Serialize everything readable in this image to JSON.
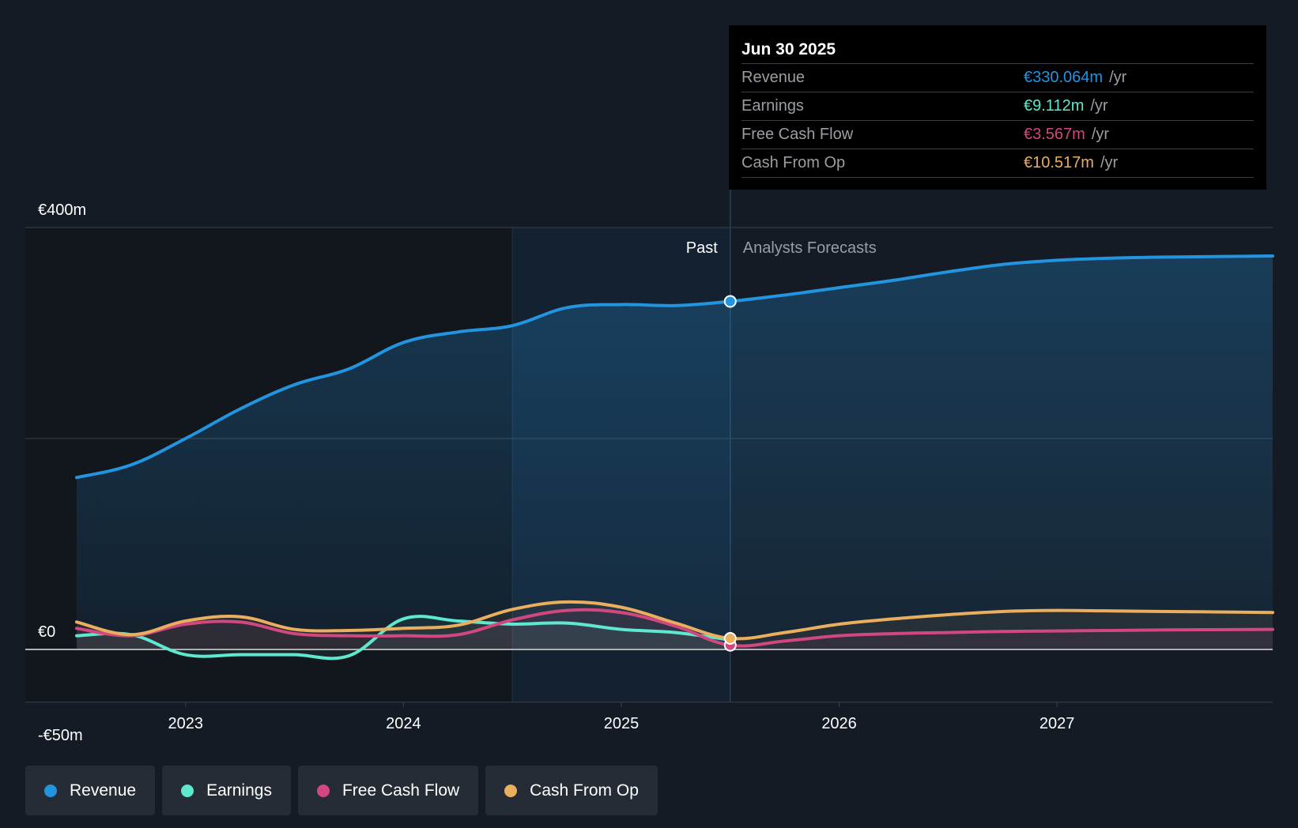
{
  "colors": {
    "revenue": "#2394df",
    "earnings": "#5fe8d0",
    "fcf": "#d0487f",
    "cfo": "#eaae5f",
    "background": "#151b24"
  },
  "tooltip": {
    "date": "Jun 30 2025",
    "rows": [
      {
        "label": "Revenue",
        "value": "€330.064m",
        "unit": "/yr"
      },
      {
        "label": "Earnings",
        "value": "€9.112m",
        "unit": "/yr"
      },
      {
        "label": "Free Cash Flow",
        "value": "€3.567m",
        "unit": "/yr"
      },
      {
        "label": "Cash From Op",
        "value": "€10.517m",
        "unit": "/yr"
      }
    ]
  },
  "legend": [
    {
      "label": "Revenue"
    },
    {
      "label": "Earnings"
    },
    {
      "label": "Free Cash Flow"
    },
    {
      "label": "Cash From Op"
    }
  ],
  "chart_data": {
    "type": "line",
    "title": "",
    "xlabel": "",
    "ylabel": "",
    "currency_unit": "€m",
    "xlim": [
      2022.5,
      2027.99
    ],
    "ylim": [
      -50,
      400
    ],
    "x_ticks": [
      2023,
      2024,
      2025,
      2026,
      2027
    ],
    "y_tick_labels": [
      "€400m",
      "€0",
      "-€50m"
    ],
    "y_tick_values": [
      400,
      0,
      -50
    ],
    "gridlines_at": [
      400,
      200,
      0,
      -50
    ],
    "past_label": "Past",
    "forecast_label": "Analysts Forecasts",
    "divider_x": 2025.5,
    "highlight_start_x": 2024.5,
    "series": [
      {
        "name": "Revenue",
        "key": "revenue",
        "x": [
          2022.5,
          2022.75,
          2023.0,
          2023.25,
          2023.5,
          2023.75,
          2024.0,
          2024.25,
          2024.5,
          2024.75,
          2025.0,
          2025.25,
          2025.5,
          2025.75,
          2026.0,
          2026.25,
          2026.5,
          2026.75,
          2027.0,
          2027.25,
          2027.5,
          2027.99
        ],
        "values": [
          163,
          175,
          200,
          228,
          251,
          266,
          291,
          301,
          307,
          324,
          327,
          326,
          330,
          336,
          343,
          350,
          358,
          365,
          369,
          371,
          372,
          373
        ]
      },
      {
        "name": "Earnings",
        "key": "earnings",
        "x": [
          2022.5,
          2022.75,
          2023.0,
          2023.25,
          2023.5,
          2023.75,
          2024.0,
          2024.25,
          2024.5,
          2024.75,
          2025.0,
          2025.25,
          2025.5
        ],
        "values": [
          13,
          14,
          -5,
          -5,
          -5,
          -6,
          29,
          27,
          24,
          25,
          19,
          16,
          9
        ]
      },
      {
        "name": "Free Cash Flow",
        "key": "fcf",
        "x": [
          2022.5,
          2022.75,
          2023.0,
          2023.25,
          2023.5,
          2023.75,
          2024.0,
          2024.25,
          2024.5,
          2024.75,
          2025.0,
          2025.25,
          2025.5,
          2025.75,
          2026.0,
          2026.25,
          2026.5,
          2026.75,
          2027.0,
          2027.25,
          2027.5,
          2027.99
        ],
        "values": [
          20,
          13,
          24,
          26,
          15,
          13,
          13,
          14,
          28,
          37,
          35,
          22,
          4,
          8,
          13,
          15,
          16,
          17,
          17.5,
          18,
          18.5,
          19
        ]
      },
      {
        "name": "Cash From Op",
        "key": "cfo",
        "x": [
          2022.5,
          2022.75,
          2023.0,
          2023.25,
          2023.5,
          2023.75,
          2024.0,
          2024.25,
          2024.5,
          2024.75,
          2025.0,
          2025.25,
          2025.5,
          2025.75,
          2026.0,
          2026.25,
          2026.5,
          2026.75,
          2027.0,
          2027.25,
          2027.5,
          2027.99
        ],
        "values": [
          26,
          14,
          27,
          31,
          19,
          18,
          20,
          23,
          38,
          45,
          40,
          25,
          10.5,
          16,
          24,
          29,
          33,
          36,
          37,
          36.5,
          36,
          35
        ]
      }
    ]
  }
}
